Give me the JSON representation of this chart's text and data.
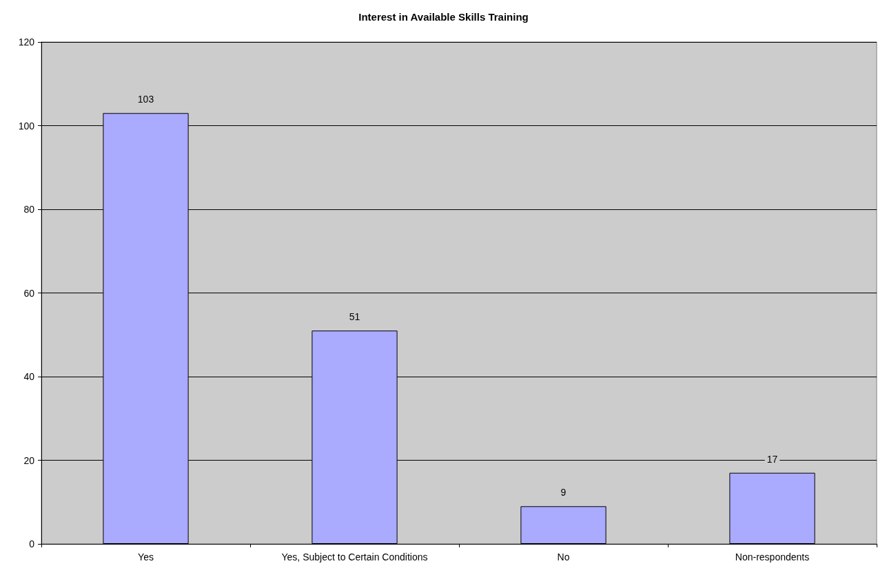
{
  "chart_data": {
    "type": "bar",
    "title": "Interest in Available Skills Training",
    "categories": [
      "Yes",
      "Yes, Subject to Certain Conditions",
      "No",
      "Non-respondents"
    ],
    "values": [
      103,
      51,
      9,
      17
    ],
    "color": "#aaaaff",
    "ylim": [
      0,
      120
    ],
    "yticks": [
      0,
      20,
      40,
      60,
      80,
      100,
      120
    ],
    "grid": "y",
    "data_labels": true
  }
}
